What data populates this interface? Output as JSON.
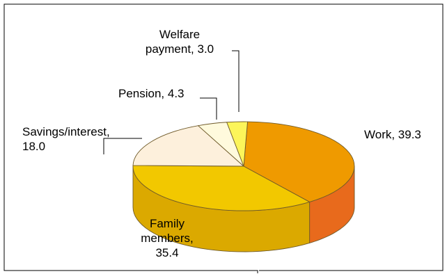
{
  "chart_data": {
    "type": "pie",
    "title": "",
    "three_d": true,
    "legend": "none",
    "categories": [
      "Work",
      "Family members",
      "Savings/interest",
      "Pension",
      "Welfare payment"
    ],
    "values": [
      39.3,
      35.4,
      18.0,
      4.3,
      3.0
    ],
    "colors": {
      "Work": {
        "top": "#EF9A00",
        "side": "#E86A1C"
      },
      "Family members": {
        "top": "#F2C800",
        "side": "#DBA900"
      },
      "Savings/interest": {
        "top": "#FDF0DC",
        "side": "#EFDDB8"
      },
      "Pension": {
        "top": "#FFFADD",
        "side": "#EEE6B5"
      },
      "Welfare payment": {
        "top": "#FCF55A",
        "side": "#E7DC3E"
      }
    },
    "labels": [
      {
        "lines": [
          "Work, 39.3"
        ]
      },
      {
        "lines": [
          "Family",
          "members,",
          "35.4"
        ]
      },
      {
        "lines": [
          "Savings/interest,",
          "18.0"
        ]
      },
      {
        "lines": [
          "Pension, 4.3"
        ]
      },
      {
        "lines": [
          "Welfare",
          "payment, 3.0"
        ]
      }
    ]
  }
}
